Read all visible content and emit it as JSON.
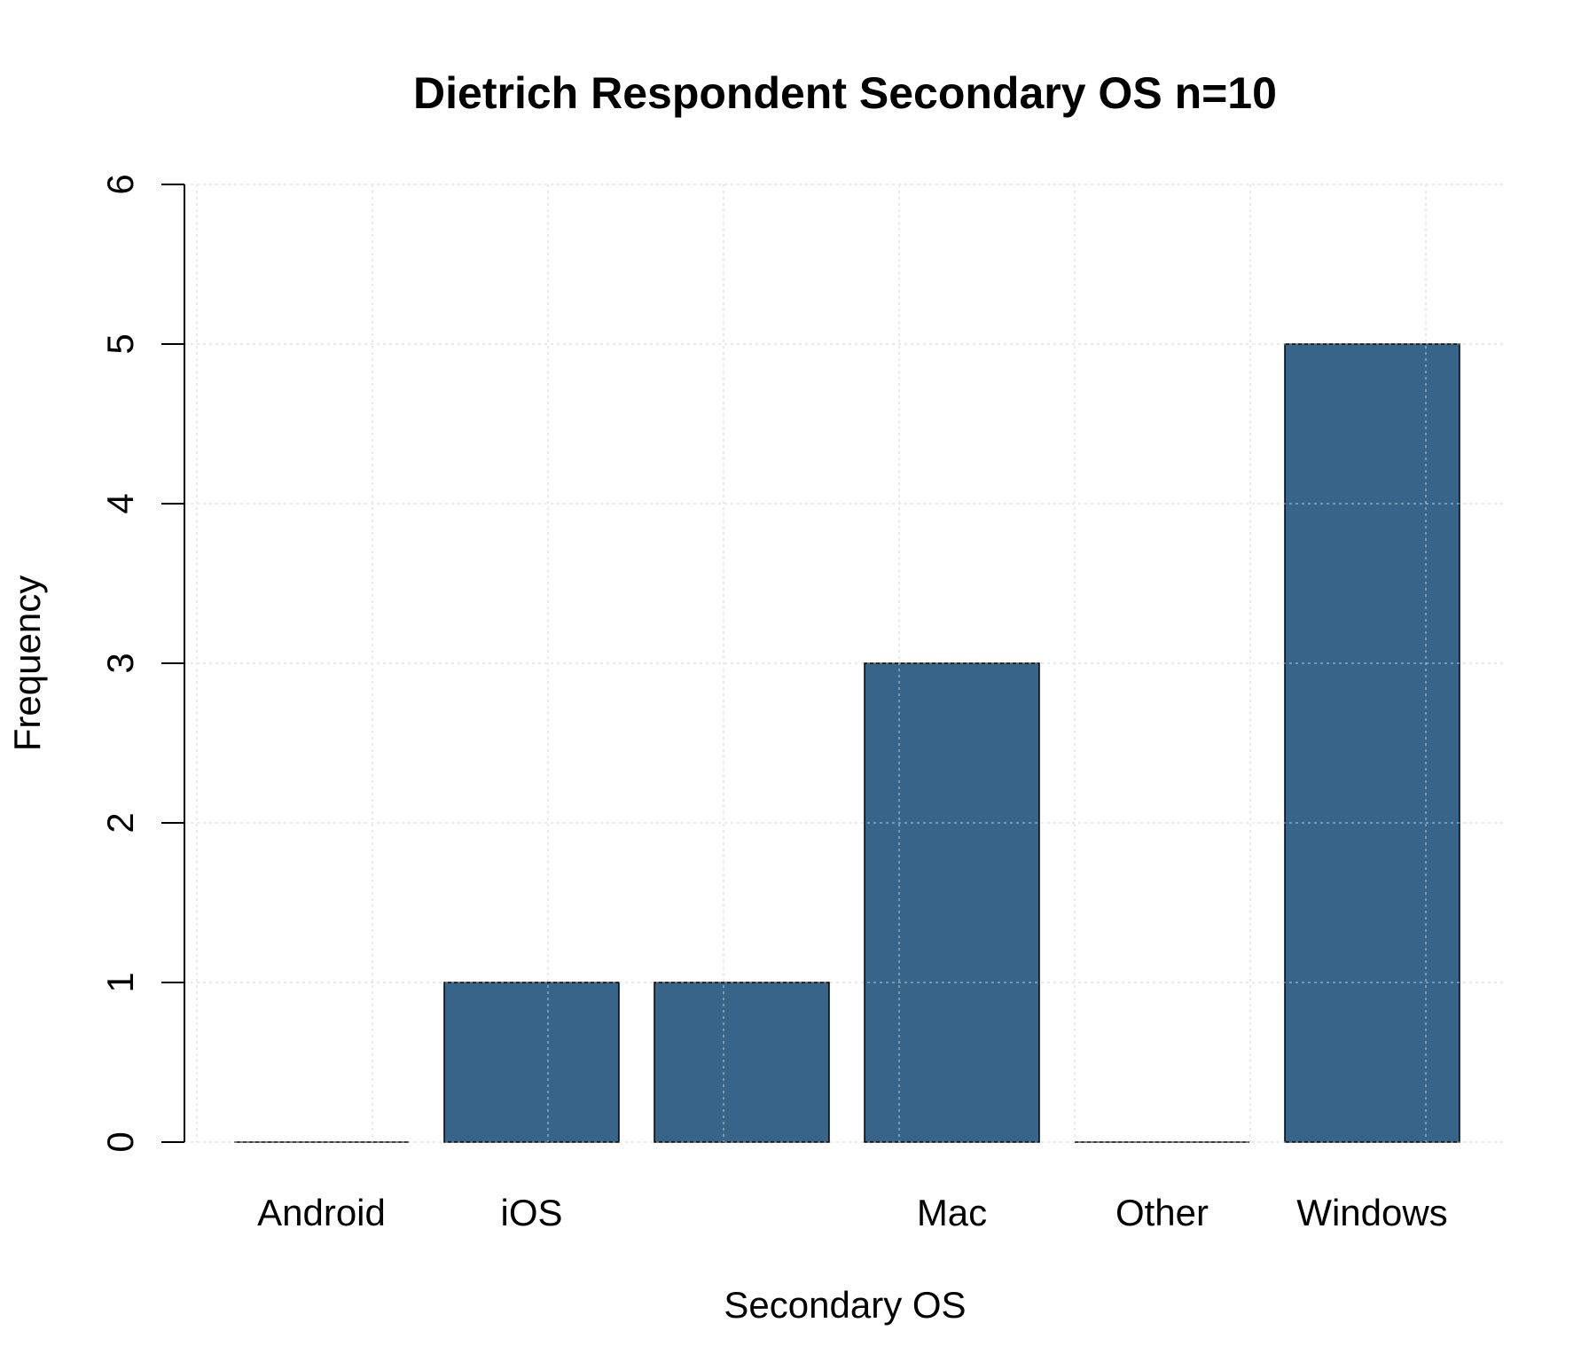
{
  "chart_data": {
    "type": "bar",
    "title": "Dietrich Respondent Secondary OS n=10",
    "xlabel": "Secondary OS",
    "ylabel": "Frequency",
    "categories": [
      "Android",
      "iOS",
      "",
      "Mac",
      "Other",
      "Windows"
    ],
    "values": [
      0,
      1,
      1,
      3,
      0,
      5
    ],
    "ylim": [
      0,
      6
    ],
    "yticks": [
      "0",
      "1",
      "2",
      "3",
      "4",
      "5",
      "6"
    ],
    "grid": true,
    "legend": "none",
    "colors": {
      "bar": "#376489",
      "bar_border": "#000000",
      "grid": "#d3d3d3",
      "axis": "#000000"
    }
  }
}
